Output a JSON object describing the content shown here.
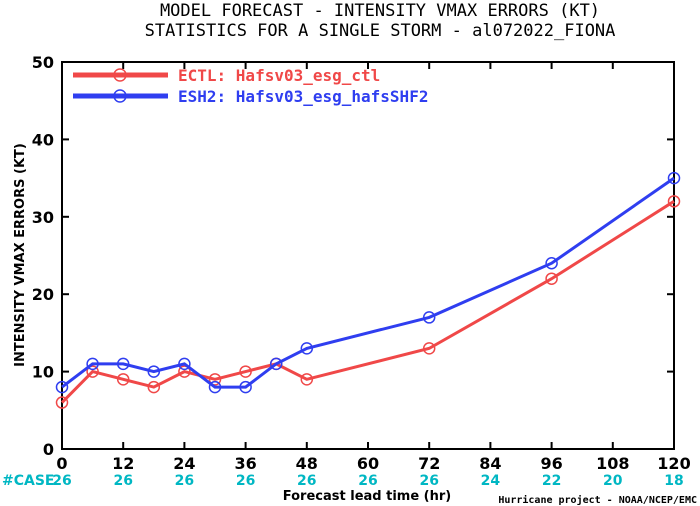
{
  "chart_data": {
    "type": "line",
    "title_lines": [
      "MODEL FORECAST - INTENSITY VMAX ERRORS (KT)",
      "STATISTICS FOR A SINGLE STORM - al072022_FIONA"
    ],
    "xlabel": "Forecast lead time (hr)",
    "ylabel": "INTENSITY VMAX ERRORS (KT)",
    "xlim": [
      0,
      120
    ],
    "ylim": [
      0,
      50
    ],
    "x_ticks": [
      0,
      12,
      24,
      36,
      48,
      60,
      72,
      84,
      96,
      108,
      120
    ],
    "y_ticks": [
      0,
      10,
      20,
      30,
      40,
      50
    ],
    "grid": false,
    "legend_position": "top-left",
    "series": [
      {
        "name": "ECTL: Hafsv03_esg_ctl",
        "color": "#f04848",
        "points": [
          [
            0,
            6
          ],
          [
            6,
            10
          ],
          [
            12,
            9
          ],
          [
            18,
            8
          ],
          [
            24,
            10
          ],
          [
            30,
            9
          ],
          [
            36,
            10
          ],
          [
            42,
            11
          ],
          [
            48,
            9
          ],
          [
            72,
            13
          ],
          [
            96,
            22
          ],
          [
            120,
            32
          ]
        ]
      },
      {
        "name": "ESH2: Hafsv03_esg_hafsSHF2",
        "color": "#2f3ef0",
        "points": [
          [
            0,
            8
          ],
          [
            6,
            11
          ],
          [
            12,
            11
          ],
          [
            18,
            10
          ],
          [
            24,
            11
          ],
          [
            30,
            8
          ],
          [
            36,
            8
          ],
          [
            42,
            11
          ],
          [
            48,
            13
          ],
          [
            72,
            17
          ],
          [
            96,
            24
          ],
          [
            120,
            35
          ]
        ]
      }
    ],
    "case_label": "#CASE",
    "case_counts": [
      "26",
      "26",
      "26",
      "26",
      "26",
      "26",
      "26",
      "24",
      "22",
      "20",
      "18"
    ],
    "credit": "Hurricane project - NOAA/NCEP/EMC"
  }
}
